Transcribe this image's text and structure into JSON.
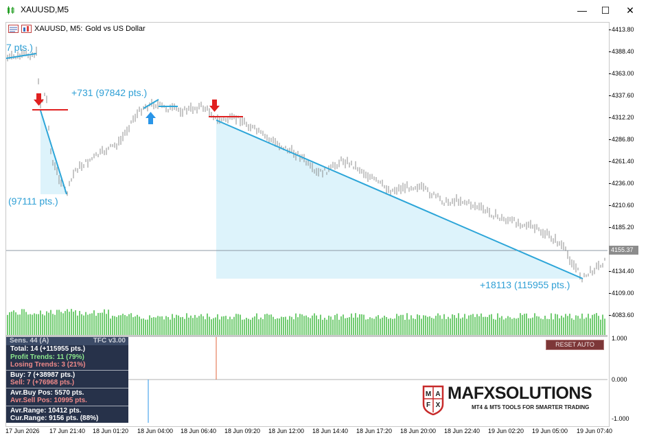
{
  "window": {
    "title": "XAUUSD,M5",
    "minimize": "—",
    "maximize": "☐",
    "close": "✕"
  },
  "chart_header": {
    "symbol": "XAUUSD, M5:",
    "description": "Gold vs US Dollar"
  },
  "price_axis": {
    "labels": [
      "4413.80",
      "4388.40",
      "4363.00",
      "4337.60",
      "4312.20",
      "4286.80",
      "4261.40",
      "4236.00",
      "4210.60",
      "4185.20",
      "4159.80",
      "4134.40",
      "4109.00",
      "4083.60"
    ],
    "current_price": "4155.37",
    "sub_labels": [
      "1.000",
      "0.000",
      "-1.000"
    ]
  },
  "time_axis": {
    "labels": [
      "17 Jun 2026",
      "17 Jun 21:40",
      "18 Jun 01:20",
      "18 Jun 04:00",
      "18 Jun 06:40",
      "18 Jun 09:20",
      "18 Jun 12:00",
      "18 Jun 14:40",
      "18 Jun 17:20",
      "18 Jun 20:00",
      "18 Jun 22:40",
      "19 Jun 02:20",
      "19 Jun 05:00",
      "19 Jun 07:40"
    ]
  },
  "annotations": {
    "top_left": "7 pts.)",
    "first_drop": "(97111 pts.)",
    "rise": "+731 (97842 pts.)",
    "final_drop": "+18113 (115955 pts.)"
  },
  "panel": {
    "sens": "Sens. 44 (A)",
    "version": "TFC v3.00",
    "total": "Total: 14 (+115955 pts.)",
    "profit": "Profit Trends: 11 (79%)",
    "losing": "Losing Trends: 3 (21%)",
    "buy": "Buy: 7 (+38987 pts.)",
    "sell": "Sell: 7 (+76968 pts.)",
    "avr_buy": "Avr.Buy Pos: 5570 pts.",
    "avr_sell": "Avr.Sell Pos: 10995 pts.",
    "avr_range": "Avr.Range: 10412 pts.",
    "cur_range": "Cur.Range: 9156 pts. (88%)"
  },
  "reset_button": "RESET AUTO",
  "logo": {
    "brand": "MAFXSOLUTIONS",
    "tagline": "MT4 & MT5 TOOLS FOR SMARTER TRADING",
    "mark": [
      "M",
      "A",
      "F",
      "X"
    ]
  },
  "colors": {
    "trend_line": "#2ca5d8",
    "shade": "#ddf3fb",
    "sell_arrow": "#e02020",
    "buy_arrow": "#2a96e8",
    "volume": "#4ec04e",
    "candles": "#8c8c8c"
  }
}
